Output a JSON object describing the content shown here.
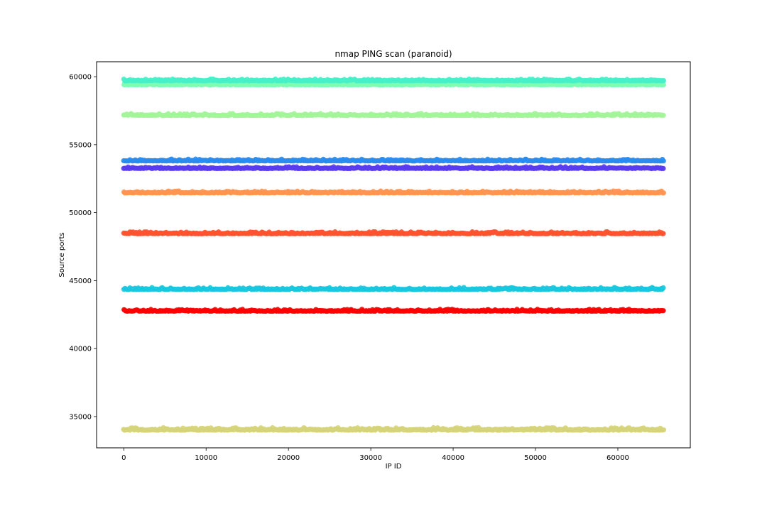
{
  "chart_data": {
    "type": "scatter",
    "title": "nmap PING scan (paranoid)",
    "xlabel": "IP ID",
    "ylabel": "Source ports",
    "xlim": [
      -3300,
      68800
    ],
    "ylim": [
      32700,
      61100
    ],
    "xticks": [
      0,
      10000,
      20000,
      30000,
      40000,
      50000,
      60000
    ],
    "yticks": [
      35000,
      40000,
      45000,
      50000,
      55000,
      60000
    ],
    "grid": false,
    "x_range": [
      0,
      65535
    ],
    "series": [
      {
        "color": "#d6d47a",
        "y": 34000,
        "jitter": 120
      },
      {
        "color": "#ff0000",
        "y": 42750,
        "jitter": 90
      },
      {
        "color": "#18c6e0",
        "y": 44350,
        "jitter": 90
      },
      {
        "color": "#ff5230",
        "y": 48450,
        "jitter": 90
      },
      {
        "color": "#ff9550",
        "y": 51450,
        "jitter": 90
      },
      {
        "color": "#5a3cf0",
        "y": 53250,
        "jitter": 80
      },
      {
        "color": "#2a8cf0",
        "y": 53800,
        "jitter": 90
      },
      {
        "color": "#a4f59a",
        "y": 57150,
        "jitter": 90
      },
      {
        "color": "#7dfcb4",
        "y": 59400,
        "jitter": 70
      },
      {
        "color": "#46f0c8",
        "y": 59700,
        "jitter": 80
      }
    ]
  }
}
